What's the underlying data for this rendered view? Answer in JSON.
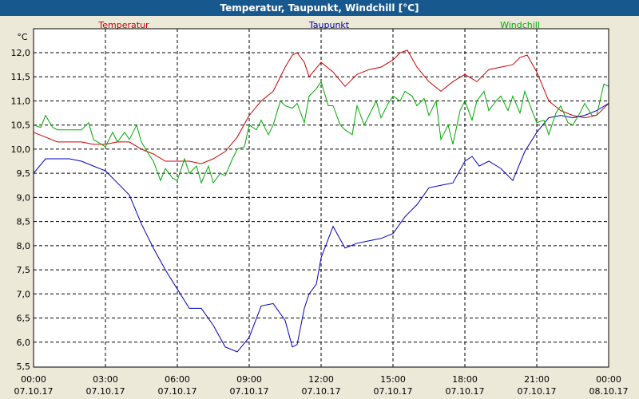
{
  "window": {
    "title": "Temperatur, Taupunkt, Windchill [°C]"
  },
  "colors": {
    "title_bar": "#17598f",
    "background": "#ece9d8",
    "plot_bg": "#ffffff",
    "grid": "#000000",
    "temperatur": "#cc0000",
    "taupunkt": "#0000bb",
    "windchill": "#00aa00"
  },
  "chart_data": {
    "type": "line",
    "title": "Temperatur, Taupunkt, Windchill [°C]",
    "ylabel": "°C",
    "xlabel": "",
    "ylim": [
      5.5,
      12.3
    ],
    "xlim": [
      0,
      24
    ],
    "grid": true,
    "legend_placement": "top",
    "y_ticks": [
      "12,0",
      "11,5",
      "11,0",
      "10,5",
      "10,0",
      "9,5",
      "9,0",
      "8,5",
      "8,0",
      "7,5",
      "7,0",
      "6,5",
      "6,0",
      "5,5"
    ],
    "x_ticks": [
      {
        "time": "00:00",
        "date": "07.10.17"
      },
      {
        "time": "03:00",
        "date": "07.10.17"
      },
      {
        "time": "06:00",
        "date": "07.10.17"
      },
      {
        "time": "09:00",
        "date": "07.10.17"
      },
      {
        "time": "12:00",
        "date": "07.10.17"
      },
      {
        "time": "15:00",
        "date": "07.10.17"
      },
      {
        "time": "18:00",
        "date": "07.10.17"
      },
      {
        "time": "21:00",
        "date": "07.10.17"
      },
      {
        "time": "00:00",
        "date": "08.10.17"
      }
    ],
    "series": [
      {
        "name": "Temperatur",
        "color": "#cc0000",
        "x": [
          0,
          0.5,
          1.0,
          1.5,
          2.0,
          2.5,
          3.0,
          3.5,
          4.0,
          4.5,
          5.0,
          5.5,
          6.0,
          6.5,
          7.0,
          7.5,
          8.0,
          8.5,
          9.0,
          9.5,
          10.0,
          10.5,
          10.8,
          11.0,
          11.3,
          11.5,
          12.0,
          12.5,
          13.0,
          13.5,
          14.0,
          14.5,
          15.0,
          15.3,
          15.6,
          16.0,
          16.5,
          17.0,
          17.5,
          18.0,
          18.5,
          19.0,
          19.5,
          20.0,
          20.3,
          20.6,
          21.0,
          21.5,
          22.0,
          22.5,
          23.0,
          23.5,
          24.0
        ],
        "values": [
          10.35,
          10.25,
          10.15,
          10.15,
          10.15,
          10.1,
          10.1,
          10.15,
          10.15,
          10.0,
          9.9,
          9.75,
          9.75,
          9.75,
          9.7,
          9.8,
          9.95,
          10.25,
          10.7,
          11.0,
          11.2,
          11.7,
          11.95,
          12.0,
          11.8,
          11.5,
          11.8,
          11.6,
          11.3,
          11.55,
          11.65,
          11.7,
          11.85,
          12.0,
          12.05,
          11.7,
          11.4,
          11.2,
          11.4,
          11.55,
          11.4,
          11.65,
          11.7,
          11.75,
          11.9,
          11.95,
          11.6,
          11.0,
          10.8,
          10.7,
          10.65,
          10.7,
          10.95
        ]
      },
      {
        "name": "Taupunkt",
        "color": "#0000bb",
        "x": [
          0,
          0.5,
          1.0,
          1.5,
          2.0,
          2.5,
          3.0,
          3.5,
          4.0,
          4.5,
          5.0,
          5.5,
          6.0,
          6.5,
          7.0,
          7.5,
          8.0,
          8.5,
          9.0,
          9.5,
          10.0,
          10.5,
          10.8,
          11.0,
          11.3,
          11.5,
          11.8,
          12.0,
          12.5,
          13.0,
          13.5,
          14.0,
          14.5,
          15.0,
          15.5,
          16.0,
          16.5,
          17.0,
          17.5,
          18.0,
          18.3,
          18.6,
          19.0,
          19.5,
          20.0,
          20.5,
          21.0,
          21.5,
          22.0,
          22.5,
          23.0,
          23.5,
          24.0
        ],
        "values": [
          9.5,
          9.8,
          9.8,
          9.8,
          9.75,
          9.65,
          9.55,
          9.3,
          9.05,
          8.45,
          7.95,
          7.5,
          7.1,
          6.7,
          6.7,
          6.35,
          5.9,
          5.8,
          6.1,
          6.75,
          6.8,
          6.45,
          5.9,
          5.95,
          6.7,
          7.0,
          7.2,
          7.75,
          8.4,
          7.95,
          8.05,
          8.1,
          8.15,
          8.25,
          8.6,
          8.85,
          9.2,
          9.25,
          9.3,
          9.75,
          9.85,
          9.65,
          9.75,
          9.6,
          9.35,
          9.95,
          10.35,
          10.65,
          10.7,
          10.65,
          10.7,
          10.8,
          10.95
        ]
      },
      {
        "name": "Windchill",
        "color": "#00aa00",
        "x": [
          0,
          0.3,
          0.5,
          0.8,
          1.0,
          1.5,
          2.0,
          2.3,
          2.5,
          3.0,
          3.3,
          3.5,
          3.8,
          4.0,
          4.3,
          4.5,
          4.8,
          5.0,
          5.3,
          5.5,
          5.8,
          6.0,
          6.3,
          6.5,
          6.8,
          7.0,
          7.3,
          7.5,
          7.8,
          8.0,
          8.3,
          8.5,
          8.8,
          9.0,
          9.3,
          9.5,
          9.8,
          10.0,
          10.3,
          10.5,
          10.8,
          11.0,
          11.3,
          11.5,
          11.8,
          12.0,
          12.3,
          12.5,
          12.8,
          13.0,
          13.3,
          13.5,
          13.8,
          14.0,
          14.3,
          14.5,
          14.8,
          15.0,
          15.3,
          15.5,
          15.8,
          16.0,
          16.3,
          16.5,
          16.8,
          17.0,
          17.3,
          17.5,
          17.8,
          18.0,
          18.3,
          18.5,
          18.8,
          19.0,
          19.3,
          19.5,
          19.8,
          20.0,
          20.3,
          20.5,
          20.8,
          21.0,
          21.3,
          21.5,
          21.8,
          22.0,
          22.3,
          22.5,
          22.8,
          23.0,
          23.3,
          23.5,
          23.8,
          24.0
        ],
        "values": [
          10.5,
          10.45,
          10.7,
          10.45,
          10.4,
          10.4,
          10.4,
          10.55,
          10.2,
          10.05,
          10.35,
          10.15,
          10.35,
          10.2,
          10.5,
          10.15,
          9.9,
          9.75,
          9.35,
          9.6,
          9.4,
          9.35,
          9.8,
          9.5,
          9.65,
          9.3,
          9.65,
          9.3,
          9.5,
          9.45,
          9.8,
          10.0,
          10.05,
          10.5,
          10.4,
          10.6,
          10.3,
          10.5,
          11.0,
          10.9,
          10.85,
          10.95,
          10.55,
          11.1,
          11.25,
          11.4,
          10.9,
          10.9,
          10.5,
          10.4,
          10.3,
          10.9,
          10.5,
          10.7,
          11.0,
          10.65,
          10.95,
          11.1,
          11.0,
          11.2,
          11.1,
          10.9,
          11.05,
          10.7,
          11.0,
          10.2,
          10.5,
          10.1,
          10.8,
          11.0,
          10.6,
          11.0,
          11.2,
          10.8,
          11.0,
          11.1,
          10.8,
          11.1,
          10.75,
          11.2,
          10.8,
          10.55,
          10.6,
          10.3,
          10.75,
          10.9,
          10.55,
          10.5,
          10.75,
          10.95,
          10.7,
          10.7,
          11.35,
          11.3
        ]
      }
    ]
  }
}
